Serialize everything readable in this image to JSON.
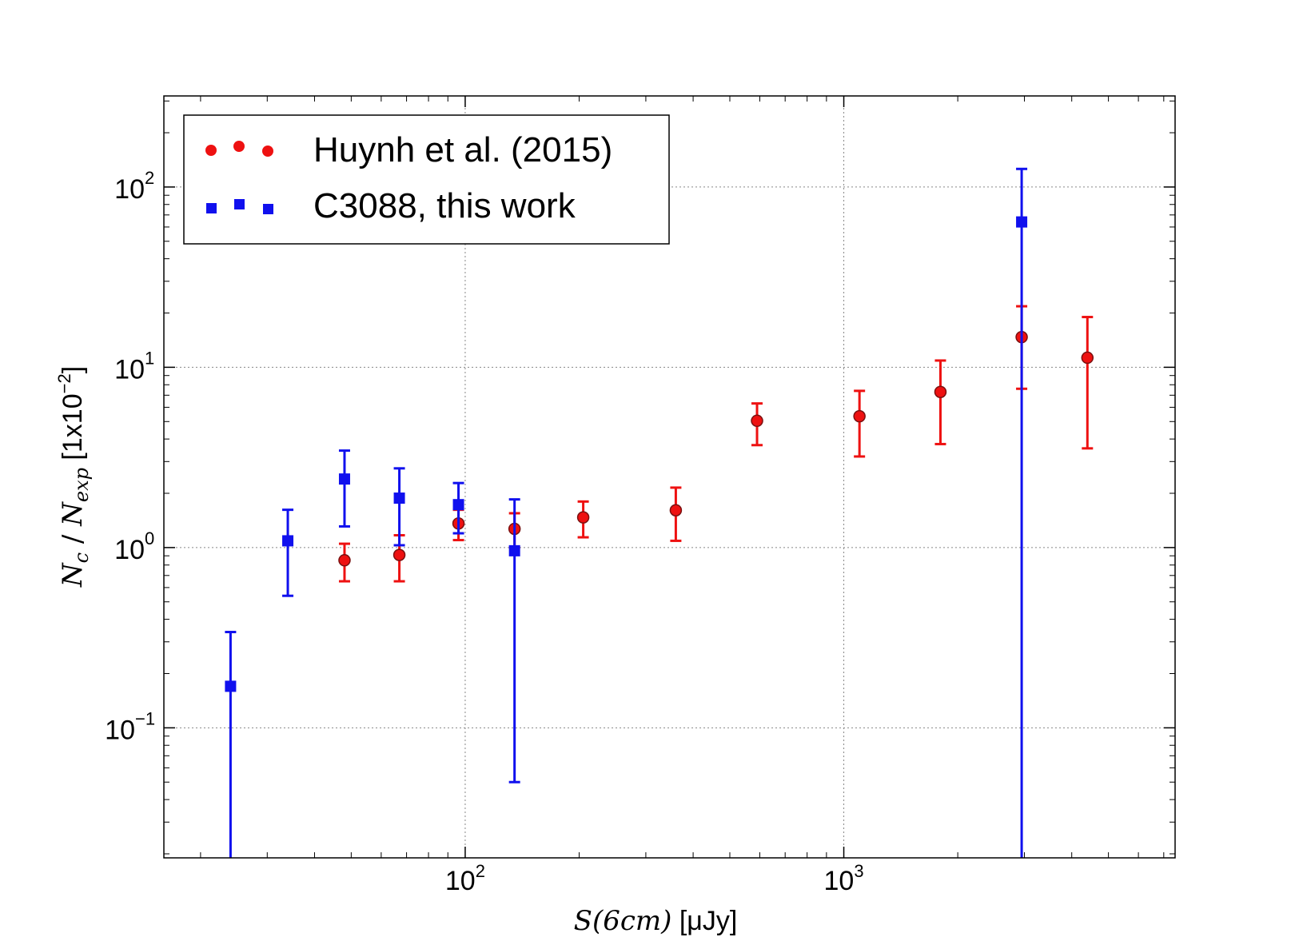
{
  "chart_data": {
    "type": "scatter",
    "xlabel_math": "S(6cm)",
    "xlabel_unit": " [μJy]",
    "ylabel_math_n": "N",
    "ylabel_sub_c": "c",
    "ylabel_slash": " / ",
    "ylabel_sub_exp": "exp",
    "ylabel_unit": " [1x10",
    "ylabel_unit_exp": "−2",
    "ylabel_unit_close": "]",
    "xscale": "log",
    "yscale": "log",
    "xlim": [
      16,
      7500
    ],
    "ylim": [
      0.019,
      320
    ],
    "grid": true,
    "legend_position": "top-left",
    "x_ticks": [
      {
        "base": "10",
        "exp": "2",
        "value": 100
      },
      {
        "base": "10",
        "exp": "3",
        "value": 1000
      }
    ],
    "y_ticks": [
      {
        "base": "10",
        "exp": "−1",
        "value": 0.1
      },
      {
        "base": "10",
        "exp": "0",
        "value": 1
      },
      {
        "base": "10",
        "exp": "1",
        "value": 10
      },
      {
        "base": "10",
        "exp": "2",
        "value": 100
      }
    ],
    "series": [
      {
        "name": "Huynh et al. (2015)",
        "marker": "circle",
        "color": "#ee1111",
        "points": [
          {
            "x": 48,
            "y": 0.85,
            "ylo": 0.65,
            "yhi": 1.05
          },
          {
            "x": 67,
            "y": 0.91,
            "ylo": 0.65,
            "yhi": 1.17
          },
          {
            "x": 96,
            "y": 1.36,
            "ylo": 1.1,
            "yhi": 1.62
          },
          {
            "x": 135,
            "y": 1.27,
            "ylo": 1.0,
            "yhi": 1.55
          },
          {
            "x": 205,
            "y": 1.47,
            "ylo": 1.14,
            "yhi": 1.8
          },
          {
            "x": 360,
            "y": 1.61,
            "ylo": 1.09,
            "yhi": 2.15
          },
          {
            "x": 590,
            "y": 5.05,
            "ylo": 3.7,
            "yhi": 6.3
          },
          {
            "x": 1100,
            "y": 5.35,
            "ylo": 3.2,
            "yhi": 7.4
          },
          {
            "x": 1800,
            "y": 7.3,
            "ylo": 3.75,
            "yhi": 10.9
          },
          {
            "x": 2950,
            "y": 14.7,
            "ylo": 7.6,
            "yhi": 21.8
          },
          {
            "x": 4400,
            "y": 11.3,
            "ylo": 3.55,
            "yhi": 19.0
          }
        ]
      },
      {
        "name": "C3088, this work",
        "marker": "square",
        "color": "#1010ee",
        "points": [
          {
            "x": 24,
            "y": 0.17,
            "ylo": 0.019,
            "yhi": 0.34
          },
          {
            "x": 34,
            "y": 1.09,
            "ylo": 0.54,
            "yhi": 1.62
          },
          {
            "x": 48,
            "y": 2.4,
            "ylo": 1.31,
            "yhi": 3.45
          },
          {
            "x": 67,
            "y": 1.88,
            "ylo": 1.03,
            "yhi": 2.75
          },
          {
            "x": 96,
            "y": 1.73,
            "ylo": 1.2,
            "yhi": 2.28
          },
          {
            "x": 135,
            "y": 0.96,
            "ylo": 0.05,
            "yhi": 1.85
          },
          {
            "x": 2950,
            "y": 64,
            "ylo": 0.019,
            "yhi": 126
          }
        ]
      }
    ]
  }
}
